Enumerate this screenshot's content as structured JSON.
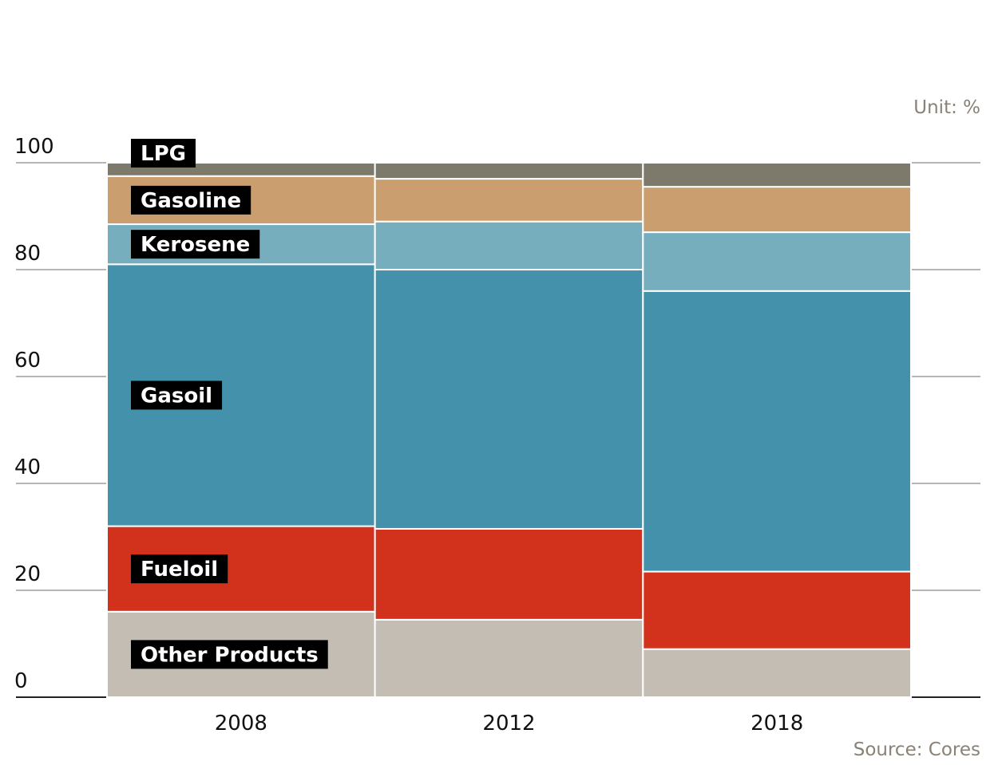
{
  "chart_data": {
    "type": "bar",
    "stacked": true,
    "percent": true,
    "categories": [
      "2008",
      "2012",
      "2018"
    ],
    "series": [
      {
        "name": "Other Products",
        "color": "#c4bdb3",
        "values": [
          16,
          14.5,
          9
        ]
      },
      {
        "name": "Fueloil",
        "color": "#d2311c",
        "values": [
          16,
          17,
          14.5
        ]
      },
      {
        "name": "Gasoil",
        "color": "#4391aa",
        "values": [
          49,
          48.5,
          52.5
        ]
      },
      {
        "name": "Kerosene",
        "color": "#76aebe",
        "values": [
          7.5,
          9,
          11
        ]
      },
      {
        "name": "Gasoline",
        "color": "#cb9e6f",
        "values": [
          9,
          8,
          8.5
        ]
      },
      {
        "name": "LPG",
        "color": "#7d796b",
        "values": [
          2.5,
          3,
          4.5
        ]
      }
    ],
    "yticks": [
      0,
      20,
      40,
      60,
      80,
      100
    ],
    "ylim": [
      0,
      100
    ],
    "unit_label": "Unit: %",
    "source": "Source: Cores",
    "grid": true,
    "legend": "inline-left"
  }
}
